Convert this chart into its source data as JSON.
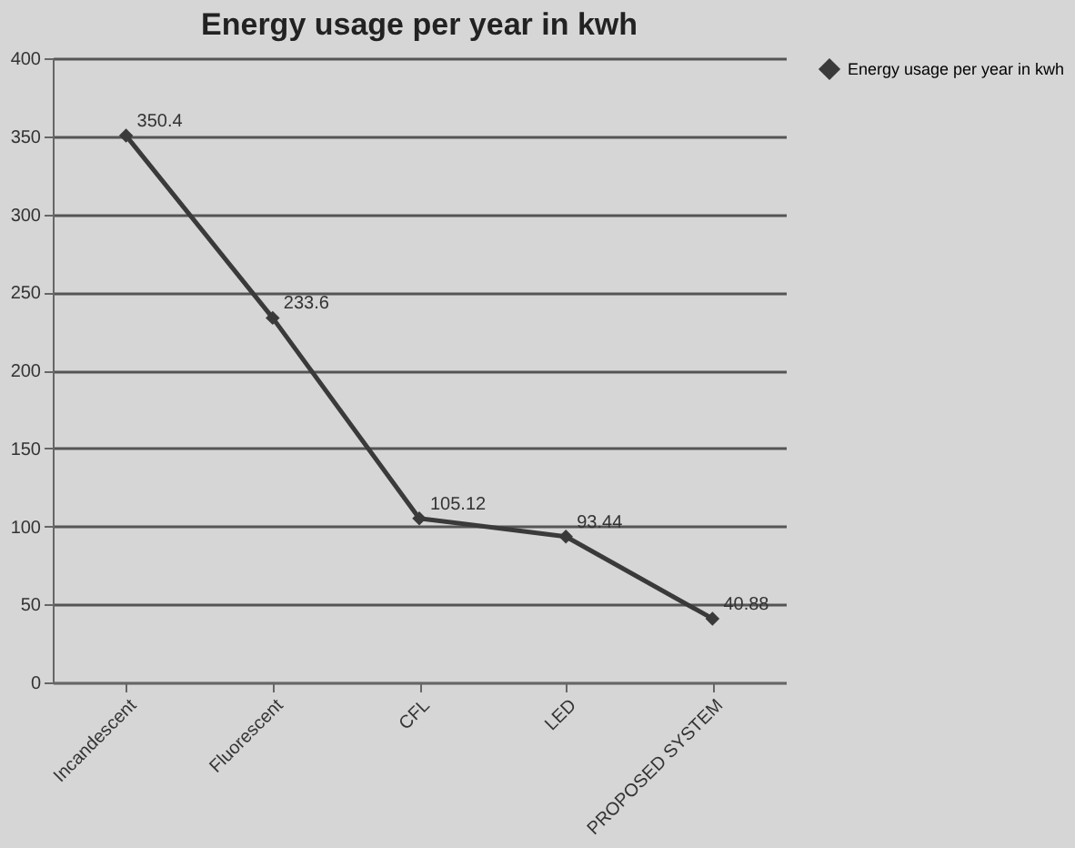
{
  "chart_data": {
    "type": "line",
    "title": "Energy usage per year in kwh",
    "categories": [
      "Incandescent",
      "Fluorescent",
      "CFL",
      "LED",
      "PROPOSED SYSTEM"
    ],
    "series": [
      {
        "name": "Energy usage per year in kwh",
        "color": "#3a3a3a",
        "values": [
          350.4,
          233.6,
          105.12,
          93.44,
          40.88
        ]
      }
    ],
    "ylim": [
      0,
      400
    ],
    "yticks": [
      0,
      50,
      100,
      150,
      200,
      250,
      300,
      350,
      400
    ],
    "grid": "y",
    "legend": "right",
    "marker": "diamond",
    "line_style": "solid",
    "data_labels": true
  }
}
